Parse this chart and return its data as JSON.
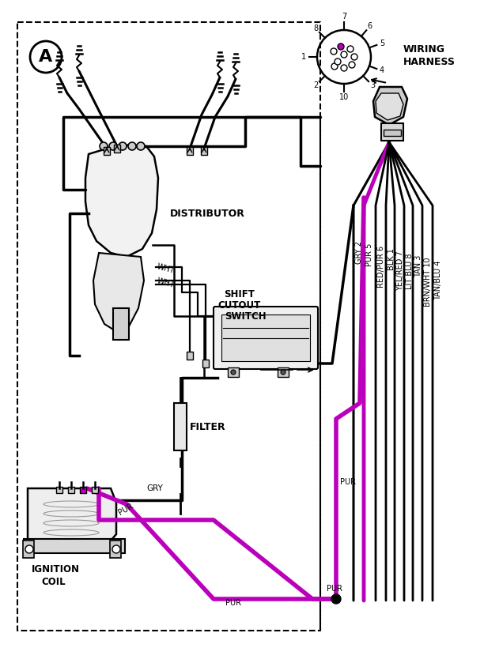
{
  "bg": "#ffffff",
  "black": "#000000",
  "purple": "#bb00bb",
  "gray_line": "#888888",
  "lw_main": 2.5,
  "lw_thick": 3.0,
  "lw_purple": 4.0,
  "lw_thin": 1.5,
  "figw": 6.12,
  "figh": 8.39,
  "dpi": 100,
  "wire_bundle": [
    {
      "label": "GRY 2",
      "col": "#000000",
      "lw": 2.2,
      "ox": 0
    },
    {
      "label": "PUR 5",
      "col": "#bb00bb",
      "lw": 3.5,
      "ox": 1
    },
    {
      "label": "RED/PUR 6",
      "col": "#000000",
      "lw": 2.0,
      "ox": 2
    },
    {
      "label": "BLK 1",
      "col": "#000000",
      "lw": 2.0,
      "ox": 3
    },
    {
      "label": "YEL/RED 7",
      "col": "#000000",
      "lw": 2.0,
      "ox": 4
    },
    {
      "label": "LIT BLU 8",
      "col": "#000000",
      "lw": 2.0,
      "ox": 5
    },
    {
      "label": "TAN 3",
      "col": "#000000",
      "lw": 2.0,
      "ox": 6
    },
    {
      "label": "BRN/WHT 10",
      "col": "#000000",
      "lw": 2.0,
      "ox": 7
    },
    {
      "label": "TAN/BLU 4",
      "col": "#000000",
      "lw": 2.0,
      "ox": 8
    }
  ]
}
